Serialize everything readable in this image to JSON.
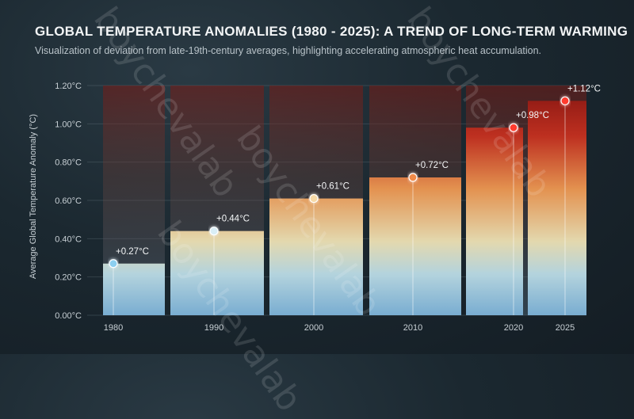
{
  "chart_data": {
    "type": "bar",
    "title": "GLOBAL TEMPERATURE ANOMALIES (1980 - 2025): A TREND OF LONG-TERM WARMING",
    "subtitle": "Visualization of deviation from late-19th-century averages, highlighting accelerating atmospheric heat accumulation.",
    "ylabel": "Average Global Temperature Anomaly (°C)",
    "xlabel": "",
    "ylim": [
      0,
      1.2
    ],
    "y_ticks": [
      "0.00°C",
      "0.20°C",
      "0.40°C",
      "0.60°C",
      "0.80°C",
      "1.00°C",
      "1.20°C"
    ],
    "categories": [
      "1980",
      "1990",
      "2000",
      "2010",
      "2020",
      "2025"
    ],
    "values": [
      0.27,
      0.44,
      0.61,
      0.72,
      0.98,
      1.12
    ],
    "data_labels": [
      "+0.27°C",
      "+0.44°C",
      "+0.61°C",
      "+0.72°C",
      "+0.98°C",
      "+1.12°C"
    ],
    "grid": true,
    "colors": {
      "low": "#8cc4e8",
      "mid": "#f0a050",
      "high": "#d42a20",
      "step_line_low": "#d8eef6",
      "step_line_high": "#ff4a3a"
    }
  },
  "watermark": "boychevalab"
}
